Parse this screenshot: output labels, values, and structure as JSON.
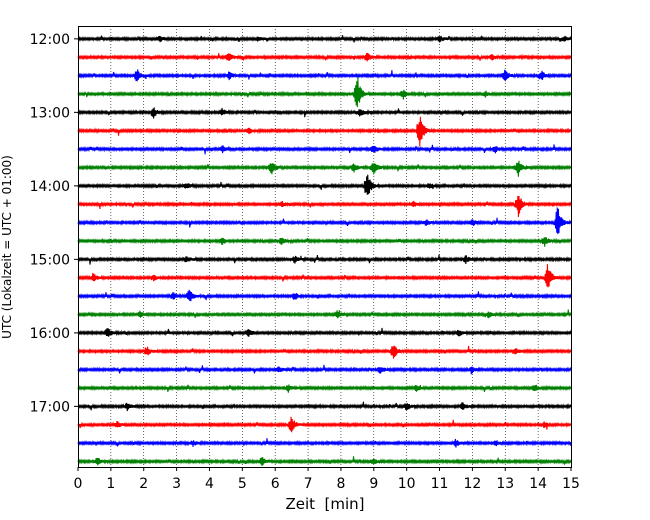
{
  "chart_data": {
    "type": "line",
    "subtype": "helicorder",
    "xlabel": "Zeit  [min]",
    "ylabel": "UTC (Lokalzeit = UTC + 01:00)",
    "xlim": [
      0,
      15
    ],
    "xticks": [
      0,
      1,
      2,
      3,
      4,
      5,
      6,
      7,
      8,
      9,
      10,
      11,
      12,
      13,
      14,
      15
    ],
    "grid_x": true,
    "trace_interval_min": 15,
    "ylim_rows": [
      -0.7,
      23.3
    ],
    "yticks": [
      {
        "row": 0,
        "label": "12:00"
      },
      {
        "row": 4,
        "label": "13:00"
      },
      {
        "row": 8,
        "label": "14:00"
      },
      {
        "row": 12,
        "label": "15:00"
      },
      {
        "row": 16,
        "label": "16:00"
      },
      {
        "row": 20,
        "label": "17:00"
      }
    ],
    "color_cycle": [
      "#000000",
      "#ff0000",
      "#0000ff",
      "#008000"
    ],
    "series": [
      {
        "start": "12:00",
        "color": "#000000",
        "events": [
          [
            2.5,
            0.15
          ],
          [
            5.5,
            0.12
          ],
          [
            11.0,
            0.18
          ],
          [
            14.8,
            0.12
          ]
        ]
      },
      {
        "start": "12:15",
        "color": "#ff0000",
        "events": [
          [
            4.6,
            0.28
          ],
          [
            8.8,
            0.22
          ],
          [
            12.6,
            0.15
          ]
        ]
      },
      {
        "start": "12:30",
        "color": "#0000ff",
        "events": [
          [
            1.8,
            0.35
          ],
          [
            4.6,
            0.2
          ],
          [
            13.0,
            0.32
          ],
          [
            14.1,
            0.25
          ]
        ]
      },
      {
        "start": "12:45",
        "color": "#008000",
        "events": [
          [
            8.5,
            1.0
          ],
          [
            9.9,
            0.25
          ],
          [
            12.4,
            0.15
          ]
        ]
      },
      {
        "start": "13:00",
        "color": "#000000",
        "events": [
          [
            2.3,
            0.3
          ],
          [
            4.4,
            0.18
          ],
          [
            8.6,
            0.22
          ]
        ]
      },
      {
        "start": "13:15",
        "color": "#ff0000",
        "events": [
          [
            10.4,
            1.0
          ],
          [
            5.2,
            0.15
          ]
        ]
      },
      {
        "start": "13:30",
        "color": "#0000ff",
        "events": [
          [
            4.4,
            0.18
          ],
          [
            9.0,
            0.22
          ],
          [
            12.7,
            0.18
          ]
        ]
      },
      {
        "start": "13:45",
        "color": "#008000",
        "events": [
          [
            5.9,
            0.35
          ],
          [
            8.4,
            0.25
          ],
          [
            9.0,
            0.4
          ],
          [
            13.4,
            0.45
          ]
        ]
      },
      {
        "start": "14:00",
        "color": "#000000",
        "events": [
          [
            8.8,
            0.75
          ],
          [
            3.3,
            0.15
          ],
          [
            10.7,
            0.15
          ]
        ]
      },
      {
        "start": "14:15",
        "color": "#ff0000",
        "events": [
          [
            13.4,
            0.65
          ],
          [
            6.2,
            0.15
          ],
          [
            10.2,
            0.15
          ]
        ]
      },
      {
        "start": "14:30",
        "color": "#0000ff",
        "events": [
          [
            14.6,
            0.9
          ],
          [
            10.6,
            0.15
          ],
          [
            12.0,
            0.18
          ]
        ]
      },
      {
        "start": "14:45",
        "color": "#008000",
        "events": [
          [
            4.4,
            0.2
          ],
          [
            6.2,
            0.18
          ],
          [
            14.2,
            0.3
          ]
        ]
      },
      {
        "start": "15:00",
        "color": "#000000",
        "events": [
          [
            3.3,
            0.18
          ],
          [
            6.6,
            0.18
          ],
          [
            11.8,
            0.2
          ]
        ]
      },
      {
        "start": "15:15",
        "color": "#ff0000",
        "events": [
          [
            14.3,
            0.8
          ],
          [
            0.5,
            0.2
          ],
          [
            2.3,
            0.15
          ]
        ]
      },
      {
        "start": "15:30",
        "color": "#0000ff",
        "events": [
          [
            3.4,
            0.4
          ],
          [
            2.9,
            0.2
          ],
          [
            6.6,
            0.22
          ]
        ]
      },
      {
        "start": "15:45",
        "color": "#008000",
        "events": [
          [
            1.9,
            0.18
          ],
          [
            7.9,
            0.2
          ],
          [
            12.5,
            0.18
          ]
        ]
      },
      {
        "start": "16:00",
        "color": "#000000",
        "events": [
          [
            0.9,
            0.25
          ],
          [
            5.2,
            0.2
          ],
          [
            11.6,
            0.18
          ]
        ]
      },
      {
        "start": "16:15",
        "color": "#ff0000",
        "events": [
          [
            9.6,
            0.45
          ],
          [
            2.1,
            0.25
          ],
          [
            13.3,
            0.18
          ]
        ]
      },
      {
        "start": "16:30",
        "color": "#0000ff",
        "events": [
          [
            9.2,
            0.2
          ],
          [
            6.1,
            0.15
          ],
          [
            12.0,
            0.15
          ]
        ]
      },
      {
        "start": "16:45",
        "color": "#008000",
        "events": [
          [
            6.4,
            0.2
          ],
          [
            10.3,
            0.15
          ],
          [
            13.9,
            0.2
          ]
        ]
      },
      {
        "start": "17:00",
        "color": "#000000",
        "events": [
          [
            1.5,
            0.2
          ],
          [
            10.0,
            0.18
          ],
          [
            11.7,
            0.2
          ]
        ]
      },
      {
        "start": "17:15",
        "color": "#ff0000",
        "events": [
          [
            6.5,
            0.45
          ],
          [
            1.2,
            0.18
          ],
          [
            14.2,
            0.15
          ]
        ]
      },
      {
        "start": "17:30",
        "color": "#0000ff",
        "events": [
          [
            11.5,
            0.2
          ],
          [
            12.7,
            0.18
          ],
          [
            3.5,
            0.15
          ]
        ]
      },
      {
        "start": "17:45",
        "color": "#008000",
        "events": [
          [
            0.6,
            0.22
          ],
          [
            5.6,
            0.25
          ],
          [
            9.0,
            0.15
          ]
        ]
      }
    ]
  }
}
